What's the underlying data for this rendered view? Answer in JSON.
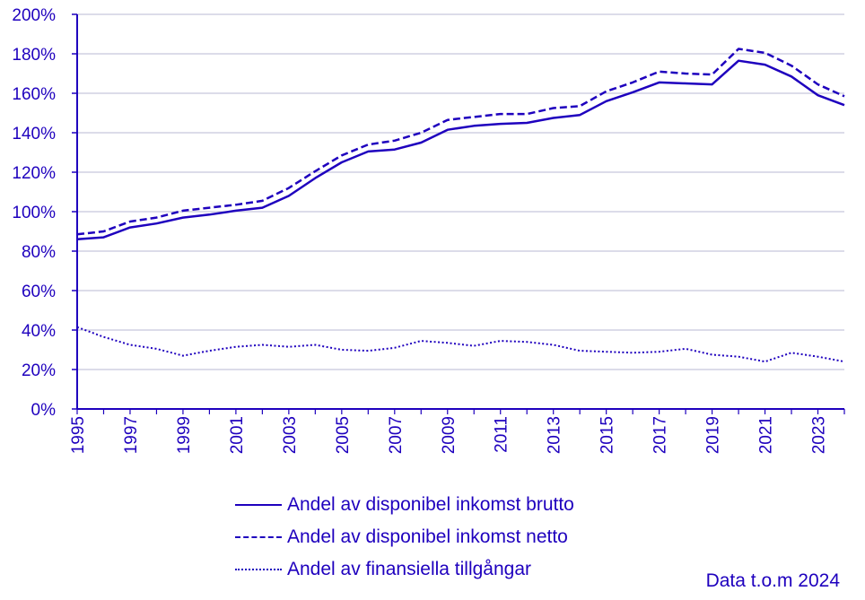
{
  "chart_data": {
    "type": "line",
    "x": [
      1995,
      1996,
      1997,
      1998,
      1999,
      2000,
      2001,
      2002,
      2003,
      2004,
      2005,
      2006,
      2007,
      2008,
      2009,
      2010,
      2011,
      2012,
      2013,
      2014,
      2015,
      2016,
      2017,
      2018,
      2019,
      2020,
      2021,
      2022,
      2023,
      2024
    ],
    "x_tick_labels": [
      "1995",
      "1997",
      "1999",
      "2001",
      "2003",
      "2005",
      "2007",
      "2009",
      "2011",
      "2013",
      "2015",
      "2017",
      "2019",
      "2021",
      "2023"
    ],
    "y_tick_labels": [
      "0%",
      "20%",
      "40%",
      "60%",
      "80%",
      "100%",
      "120%",
      "140%",
      "160%",
      "180%",
      "200%"
    ],
    "ylim": [
      0,
      200
    ],
    "grid": true,
    "series": [
      {
        "name": "Andel av disponibel inkomst brutto",
        "style": "solid",
        "values": [
          86,
          87,
          92,
          94,
          97,
          98.5,
          100.5,
          102,
          108,
          117,
          125,
          130.5,
          131.5,
          135,
          141.5,
          143.5,
          144.5,
          145,
          147.5,
          149,
          156,
          160.5,
          165.5,
          165,
          164.5,
          176.5,
          174.5,
          168.5,
          159,
          154
        ]
      },
      {
        "name": "Andel av disponibel inkomst netto",
        "style": "dashed",
        "values": [
          88.5,
          90,
          95,
          97,
          100.5,
          102,
          103.5,
          105.5,
          112,
          120.5,
          128.5,
          134,
          136,
          140,
          146.5,
          148,
          149.5,
          149.5,
          152.5,
          153.5,
          161,
          165.5,
          171,
          170,
          169.5,
          182.5,
          180.5,
          174,
          164.5,
          158.5
        ]
      },
      {
        "name": "Andel av finansiella tillgångar",
        "style": "dotted",
        "values": [
          41.5,
          36.5,
          32.5,
          30.5,
          27,
          29.5,
          31.5,
          32.5,
          31.5,
          32.5,
          30,
          29.5,
          31,
          34.5,
          33.5,
          32,
          34.5,
          34,
          32.5,
          29.5,
          29,
          28.5,
          29,
          30.5,
          27.5,
          26.5,
          24,
          28.5,
          26.5,
          24
        ]
      }
    ],
    "legend_position": "bottom",
    "color": "#1e00be",
    "grid_color": "#c8c8dc"
  },
  "note": "Data t.o.m 2024"
}
